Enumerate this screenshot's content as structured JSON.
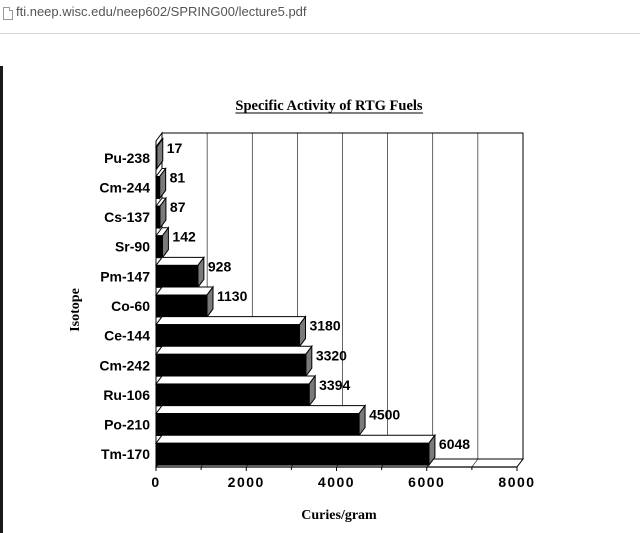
{
  "browser": {
    "url": "fti.neep.wisc.edu/neep602/SPRING00/lecture5.pdf"
  },
  "chart_data": {
    "type": "bar",
    "orientation": "horizontal",
    "title": "Specific Activity of RTG Fuels",
    "xlabel": "Curies/gram",
    "ylabel": "Isotope",
    "xlim": [
      0,
      8000
    ],
    "xticks": [
      "0",
      "2000",
      "4000",
      "6000",
      "8000"
    ],
    "grid": true,
    "categories": [
      "Pu-238",
      "Cm-244",
      "Cs-137",
      "Sr-90",
      "Pm-147",
      "Co-60",
      "Ce-144",
      "Cm-242",
      "Ru-106",
      "Po-210",
      "Tm-170"
    ],
    "values": [
      17,
      81,
      87,
      142,
      928,
      1130,
      3180,
      3320,
      3394,
      4500,
      6048
    ],
    "value_labels": [
      "17",
      "81",
      "87",
      "142",
      "928",
      "1130",
      "3180",
      "3320",
      "3394",
      "4500",
      "6048"
    ],
    "bar_color": "#000000"
  }
}
